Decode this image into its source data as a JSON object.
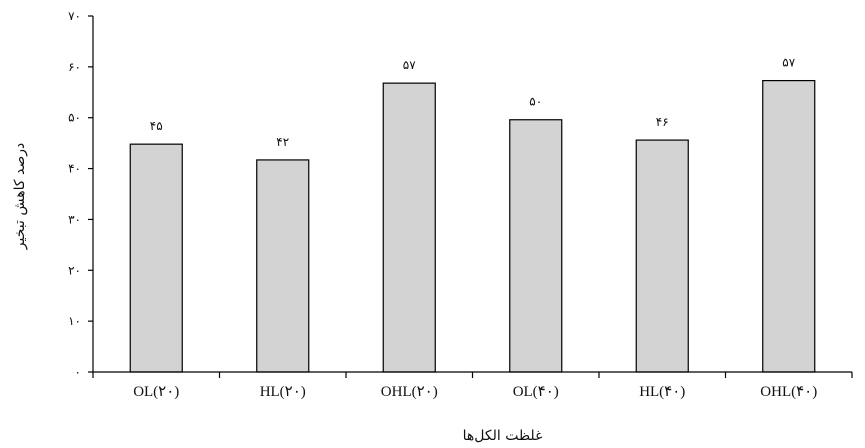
{
  "chart_data": {
    "type": "bar",
    "title": "",
    "xlabel": "غلظت الکل‌ها",
    "ylabel": "درصد کاهش تبخیر",
    "ylim": [
      0,
      70
    ],
    "yticks": [
      0,
      10,
      20,
      30,
      40,
      50,
      60,
      70
    ],
    "ytick_labels": [
      "۰",
      "۱۰",
      "۲۰",
      "۳۰",
      "۴۰",
      "۵۰",
      "۶۰",
      "۷۰"
    ],
    "categories": [
      "OL(۲۰)",
      "HL(۲۰)",
      "OHL(۲۰)",
      "OL(۴۰)",
      "HL(۴۰)",
      "OHL(۴۰)"
    ],
    "values": [
      45,
      42,
      57,
      50,
      46,
      57
    ],
    "bar_heights": [
      44.8,
      41.7,
      56.8,
      49.6,
      45.6,
      57.3
    ],
    "data_labels": [
      "۴۵",
      "۴۲",
      "۵۷",
      "۵۰",
      "۴۶",
      "۵۷"
    ],
    "grid": false,
    "legend": "none",
    "colors": {
      "bar_fill": "#d3d3d3",
      "bar_stroke": "#000000",
      "axis": "#000000"
    }
  }
}
